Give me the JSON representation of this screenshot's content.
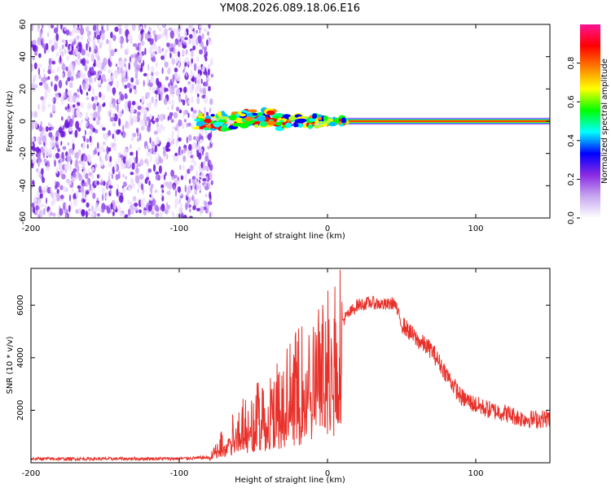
{
  "title": "YM08.2026.089.18.06.E16",
  "chart_data": [
    {
      "type": "heatmap",
      "name": "spectrogram",
      "xlabel": "Height of straight line (km)",
      "ylabel": "Frequency (Hz)",
      "xlim": [
        -200,
        150
      ],
      "ylim": [
        -60,
        60
      ],
      "xticks": [
        -200,
        -100,
        0,
        100
      ],
      "yticks": [
        -60,
        -40,
        -20,
        0,
        20,
        40,
        60
      ],
      "noise_region_x": [
        -200,
        -80
      ],
      "signal_band_x": [
        -88,
        150
      ],
      "signal_center_freq_hz": 0,
      "colorbar": {
        "label": "Normalized spectral amplitude",
        "range": [
          0,
          1
        ],
        "ticks": [
          "0.0",
          "0.2",
          "0.4",
          "0.6",
          "0.8"
        ],
        "colors": [
          "#ffffff",
          "#c8a8f0",
          "#8a2be2",
          "#0000ff",
          "#00ffff",
          "#00ff00",
          "#ffff00",
          "#ff7f00",
          "#ff0000",
          "#ff1493"
        ]
      }
    },
    {
      "type": "line",
      "name": "snr",
      "xlabel": "Height of straight line (km)",
      "ylabel": "SNR (10 * v/v)",
      "xlim": [
        -200,
        150
      ],
      "ylim": [
        0,
        7400
      ],
      "xticks": [
        -200,
        -100,
        0,
        100
      ],
      "yticks": [
        2000,
        4000,
        6000
      ],
      "color": "#e8312a",
      "series": [
        {
          "name": "SNR",
          "x": [
            -200,
            -150,
            -100,
            -80,
            -70,
            -60,
            -50,
            -40,
            -30,
            -20,
            -10,
            0,
            10,
            20,
            30,
            40,
            45,
            50,
            60,
            70,
            80,
            90,
            100,
            110,
            120,
            130,
            140,
            150
          ],
          "values": [
            150,
            150,
            160,
            200,
            900,
            1600,
            1900,
            2300,
            2800,
            3300,
            3500,
            4400,
            5400,
            6000,
            6100,
            6000,
            6100,
            5300,
            4700,
            4300,
            3400,
            2500,
            2200,
            2000,
            1900,
            1700,
            1650,
            1700
          ]
        }
      ]
    }
  ]
}
